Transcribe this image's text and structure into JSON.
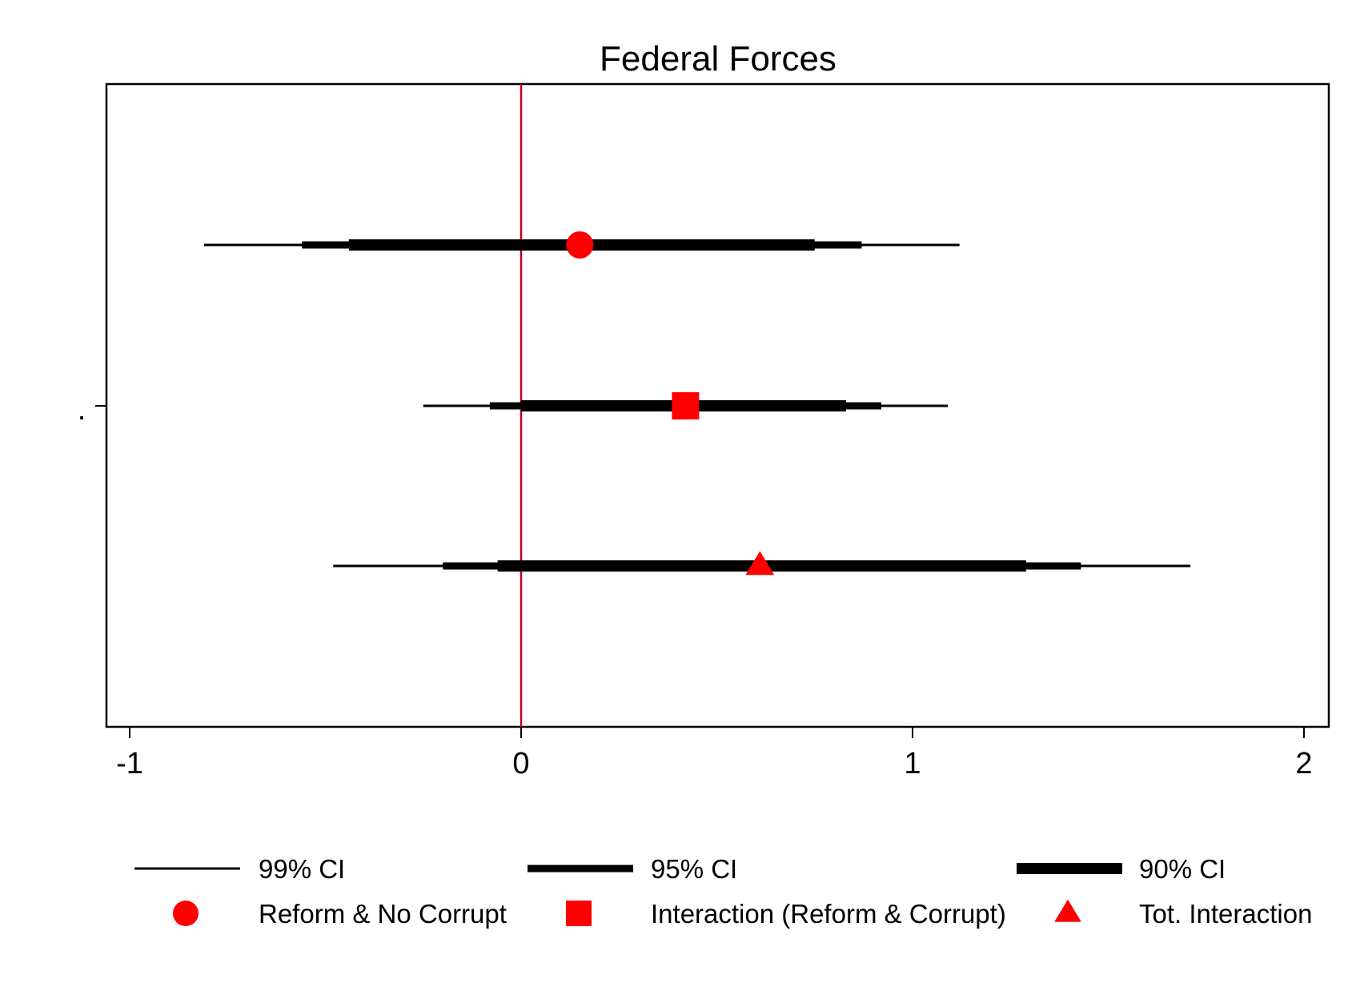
{
  "chart_data": {
    "type": "coefficient_plot",
    "title": "Federal Forces",
    "y_tick_label": ".",
    "xlim": [
      -1.06,
      2.06
    ],
    "x_ticks": [
      -1,
      0,
      1,
      2
    ],
    "x_tick_labels": [
      "-1",
      "0",
      "1",
      "2"
    ],
    "reference_line": {
      "x": 0,
      "color": "#c0001a"
    },
    "grid": false,
    "marker_color": "#ff0000",
    "legend_position": "bottom",
    "series": [
      {
        "name": "Reform & No Corrupt",
        "marker": "circle",
        "estimate": 0.15,
        "ci90": [
          -0.44,
          0.75
        ],
        "ci95": [
          -0.56,
          0.87
        ],
        "ci99": [
          -0.81,
          1.12
        ]
      },
      {
        "name": "Interaction (Reform & Corrupt)",
        "marker": "square",
        "estimate": 0.42,
        "ci90": [
          0.0,
          0.83
        ],
        "ci95": [
          -0.08,
          0.92
        ],
        "ci99": [
          -0.25,
          1.09
        ]
      },
      {
        "name": "Tot. Interaction",
        "marker": "triangle",
        "estimate": 0.61,
        "ci90": [
          -0.06,
          1.29
        ],
        "ci95": [
          -0.2,
          1.43
        ],
        "ci99": [
          -0.48,
          1.71
        ]
      }
    ],
    "legend": {
      "ci_entries": [
        {
          "key": "ci99",
          "label": "99% CI"
        },
        {
          "key": "ci95",
          "label": "95% CI"
        },
        {
          "key": "ci90",
          "label": "90% CI"
        }
      ],
      "marker_entries": [
        {
          "marker": "circle",
          "label": "Reform & No Corrupt"
        },
        {
          "marker": "square",
          "label": "Interaction (Reform & Corrupt)"
        },
        {
          "marker": "triangle",
          "label": "Tot. Interaction"
        }
      ]
    }
  }
}
